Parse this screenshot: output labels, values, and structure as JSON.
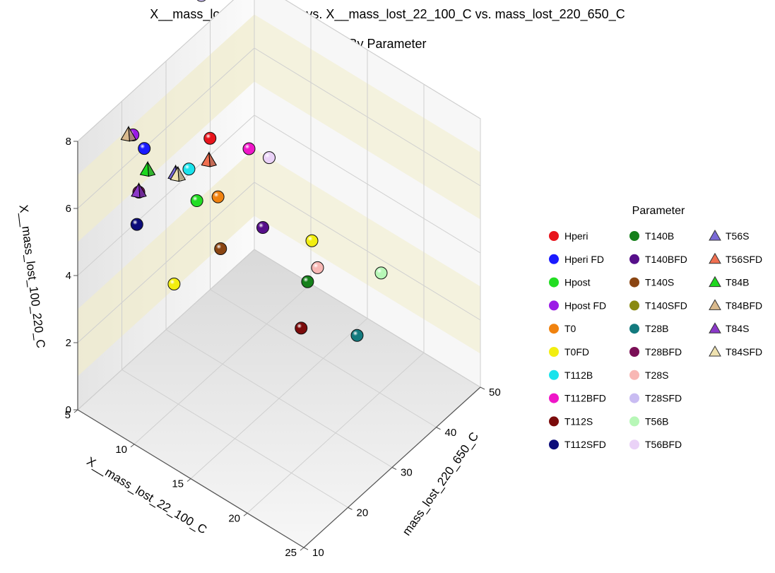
{
  "chart_data": {
    "type": "scatter3d",
    "title": "X__mass_lost_100_220_C vs. X__mass_lost_22_100_C vs. mass_lost_220_650_C",
    "subtitle": "By Parameter",
    "x_axis": {
      "label": "X__mass_lost_22_100_C",
      "range": [
        5,
        25
      ],
      "ticks": [
        "5",
        "10",
        "15",
        "20",
        "25"
      ]
    },
    "y_axis": {
      "label": "mass_lost_220_650_C",
      "range": [
        10,
        50
      ],
      "ticks": [
        "10",
        "20",
        "30",
        "40",
        "50"
      ]
    },
    "z_axis": {
      "label": "X__mass_lost_100_220_C",
      "range": [
        0,
        8
      ],
      "ticks": [
        "0",
        "2",
        "4",
        "6",
        "8"
      ]
    },
    "legend": {
      "title": "Parameter",
      "placement": "right"
    },
    "series": [
      {
        "name": "Hperi",
        "color": "#e8141c",
        "marker": "sphere",
        "points": [
          [
            8.5,
            31,
            6.3
          ]
        ]
      },
      {
        "name": "Hperi FD",
        "color": "#1a1aff",
        "marker": "sphere",
        "points": [
          [
            6.2,
            22,
            6.6
          ]
        ]
      },
      {
        "name": "Hpost",
        "color": "#22dd22",
        "marker": "sphere",
        "points": [
          [
            8.9,
            27,
            5.0
          ]
        ]
      },
      {
        "name": "Hpost FD",
        "color": "#9b1ae6",
        "marker": "sphere",
        "points": [
          [
            5.2,
            22,
            6.8
          ]
        ]
      },
      {
        "name": "T0",
        "color": "#f0820f",
        "marker": "sphere",
        "points": [
          [
            9.6,
            30,
            4.9
          ]
        ]
      },
      {
        "name": "T0FD",
        "color": "#f2ee10",
        "marker": "sphere",
        "points": [
          [
            14.0,
            40,
            3.3
          ],
          [
            10.4,
            18,
            3.9
          ]
        ]
      },
      {
        "name": "T112B",
        "color": "#19e3ec",
        "marker": "sphere",
        "points": [
          [
            8.2,
            27,
            5.8
          ]
        ]
      },
      {
        "name": "T112BFD",
        "color": "#ef16c8",
        "marker": "sphere",
        "points": [
          [
            10.0,
            36,
            5.7
          ]
        ]
      },
      {
        "name": "T112S",
        "color": "#7b0b0b",
        "marker": "sphere",
        "points": [
          [
            15.0,
            35,
            1.5
          ]
        ]
      },
      {
        "name": "T112SFD",
        "color": "#0c0c7a",
        "marker": "sphere",
        "points": [
          [
            7.5,
            17,
            5.2
          ]
        ]
      },
      {
        "name": "T140B",
        "color": "#15801a",
        "marker": "sphere",
        "points": [
          [
            14.4,
            38,
            2.4
          ]
        ]
      },
      {
        "name": "T140BFD",
        "color": "#560f8a",
        "marker": "sphere",
        "points": [
          [
            12.0,
            34,
            4.0
          ]
        ]
      },
      {
        "name": "T140S",
        "color": "#8a4512",
        "marker": "sphere",
        "points": [
          [
            11.0,
            27,
            4.0
          ]
        ]
      },
      {
        "name": "T140SFD",
        "color": "#8a8a10",
        "marker": "sphere",
        "points": []
      },
      {
        "name": "T28B",
        "color": "#137a7e",
        "marker": "sphere",
        "points": [
          [
            18.0,
            40,
            1.3
          ]
        ]
      },
      {
        "name": "T28BFD",
        "color": "#7a0f56",
        "marker": "sphere",
        "points": [
          [
            6.5,
            20,
            5.6
          ]
        ]
      },
      {
        "name": "T28S",
        "color": "#f8b7b4",
        "marker": "sphere",
        "points": [
          [
            14.5,
            40,
            2.6
          ]
        ]
      },
      {
        "name": "T28SFD",
        "color": "#c9bcf2",
        "marker": "sphere",
        "points": [
          [
            5.0,
            38,
            9.0
          ]
        ]
      },
      {
        "name": "T56B",
        "color": "#b7f7b7",
        "marker": "sphere",
        "points": [
          [
            17.0,
            48,
            2.0
          ]
        ]
      },
      {
        "name": "T56BFD",
        "color": "#ead2f7",
        "marker": "sphere",
        "points": [
          [
            11.0,
            38,
            5.4
          ]
        ]
      },
      {
        "name": "T56S",
        "color": "#7a6ad6",
        "marker": "pyramid",
        "points": [
          [
            7.8,
            25,
            5.8
          ]
        ]
      },
      {
        "name": "T56SFD",
        "color": "#f06f50",
        "marker": "pyramid",
        "points": [
          [
            8.8,
            30,
            5.8
          ]
        ]
      },
      {
        "name": "T84B",
        "color": "#1ed81e",
        "marker": "pyramid",
        "points": [
          [
            6.5,
            22,
            6.0
          ]
        ]
      },
      {
        "name": "T84BFD",
        "color": "#d9b98d",
        "marker": "pyramid",
        "points": [
          [
            5.2,
            21,
            6.9
          ]
        ]
      },
      {
        "name": "T84S",
        "color": "#8b38c8",
        "marker": "pyramid",
        "points": [
          [
            6.5,
            20,
            5.6
          ]
        ]
      },
      {
        "name": "T84SFD",
        "color": "#efe2b0",
        "marker": "pyramid",
        "points": [
          [
            8.0,
            25,
            5.8
          ]
        ]
      }
    ]
  }
}
